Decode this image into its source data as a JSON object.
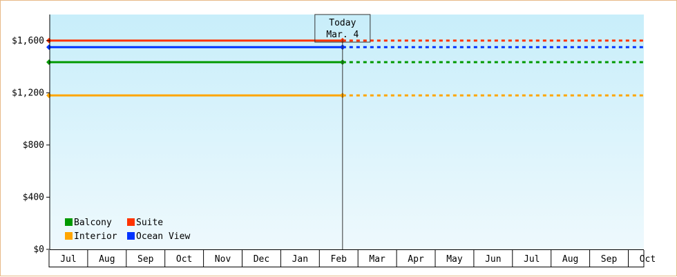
{
  "chart_data": {
    "type": "line",
    "ylim": [
      0,
      1800
    ],
    "y_ticks": [
      {
        "value": 0,
        "label": "$0"
      },
      {
        "value": 400,
        "label": "$400"
      },
      {
        "value": 800,
        "label": "$800"
      },
      {
        "value": 1200,
        "label": "$1,200"
      },
      {
        "value": 1600,
        "label": "$1,600"
      }
    ],
    "x_months": [
      "Jul",
      "Aug",
      "Sep",
      "Oct",
      "Nov",
      "Dec",
      "Jan",
      "Feb",
      "Mar",
      "Apr",
      "May",
      "Jun",
      "Jul",
      "Aug",
      "Sep",
      "Oct"
    ],
    "today": {
      "line1": "Today",
      "line2": "Mar. 4",
      "month_index": 7.6
    },
    "series": [
      {
        "name": "Suite",
        "color": "#ff3300",
        "value": 1600
      },
      {
        "name": "Ocean View",
        "color": "#0033ff",
        "value": 1550
      },
      {
        "name": "Balcony",
        "color": "#009900",
        "value": 1435
      },
      {
        "name": "Interior",
        "color": "#ffa500",
        "value": 1180
      }
    ],
    "legend": {
      "placement": "bottom-left",
      "rows": [
        [
          "Balcony",
          "Suite"
        ],
        [
          "Interior",
          "Ocean View"
        ]
      ]
    },
    "background_top": "#c8eefa",
    "background_bottom": "#eef9fd"
  }
}
